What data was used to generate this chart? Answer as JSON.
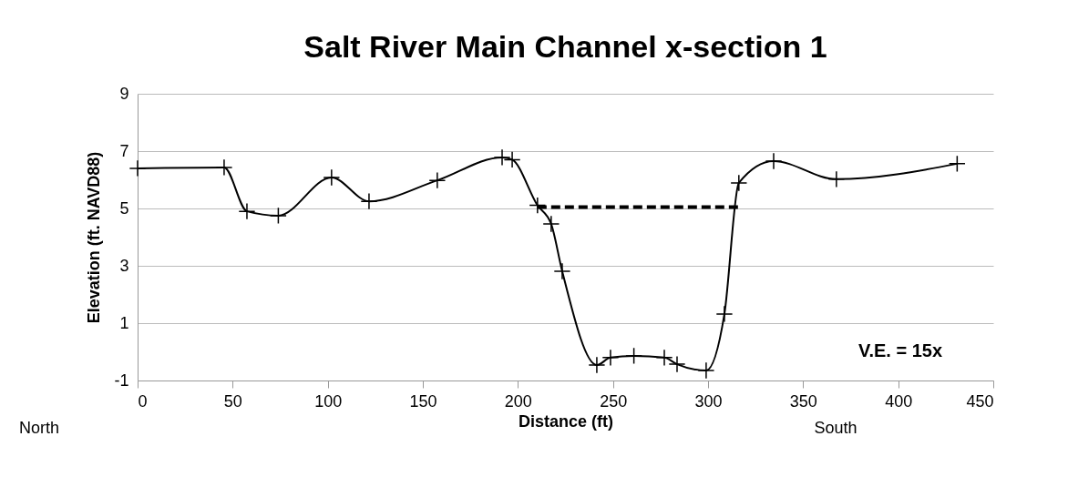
{
  "chart_data": {
    "type": "line",
    "title": "Salt River Main Channel x-section 1",
    "xlabel": "Distance (ft)",
    "ylabel": "Elevation (ft. NAVD88)",
    "xlim": [
      0,
      450
    ],
    "xticks": [
      0,
      50,
      100,
      150,
      200,
      250,
      300,
      350,
      400,
      450
    ],
    "ylim": [
      -1,
      9
    ],
    "yticks": [
      -1,
      1,
      3,
      5,
      7,
      9
    ],
    "grid": "y",
    "marker": "cross",
    "line_style": "solid",
    "annotations": [
      "V.E. = 15x",
      "North",
      "South"
    ],
    "series": [
      {
        "color": "#000000",
        "x": [
          0,
          45.5,
          57.5,
          74,
          102,
          121.7,
          157.6,
          191.7,
          197,
          210.3,
          217.5,
          223.3,
          241.5,
          248.7,
          261,
          277,
          283.7,
          299,
          308.6,
          316.2,
          334.5,
          367.5,
          431
        ],
        "values": [
          6.4,
          6.43,
          4.9,
          4.75,
          6.08,
          5.25,
          5.98,
          6.78,
          6.7,
          5.11,
          4.46,
          2.81,
          -0.46,
          -0.2,
          -0.14,
          -0.2,
          -0.43,
          -0.65,
          1.32,
          5.89,
          6.65,
          6.02,
          6.56
        ]
      },
      {
        "color": "#000000",
        "x": [
          210.3,
          316.2
        ],
        "values": [
          5.05,
          5.05
        ],
        "line_style": "dashed",
        "marker": "none"
      }
    ]
  }
}
